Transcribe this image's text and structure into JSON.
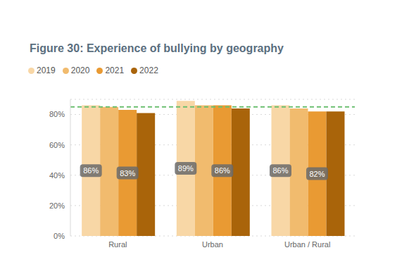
{
  "chart_data": {
    "type": "bar",
    "title": "Figure 30: Experience of bullying by geography",
    "categories": [
      "Rural",
      "Urban",
      "Urban / Rural"
    ],
    "series": [
      {
        "name": "2019",
        "color": "#f8d7a6",
        "values": [
          86,
          89,
          86
        ],
        "data_labels": true,
        "value_labels": [
          "86%",
          "89%",
          "86%"
        ]
      },
      {
        "name": "2020",
        "color": "#f1bb6e",
        "values": [
          85,
          86,
          84
        ]
      },
      {
        "name": "2021",
        "color": "#e99a33",
        "values": [
          83,
          86,
          82
        ],
        "data_labels": true,
        "value_labels": [
          "83%",
          "86%",
          "82%"
        ]
      },
      {
        "name": "2022",
        "color": "#a9640a",
        "values": [
          81,
          84,
          82
        ]
      }
    ],
    "ylim": [
      0,
      90
    ],
    "yticks": [
      {
        "value": 0,
        "label": "0%"
      },
      {
        "value": 20,
        "label": "20%"
      },
      {
        "value": 40,
        "label": "40%"
      },
      {
        "value": 60,
        "label": "60%"
      },
      {
        "value": 80,
        "label": "80%"
      }
    ],
    "grid": true,
    "legend": "top-left",
    "reference_line": {
      "value": 85,
      "color": "#6cc070",
      "line_style": "dashed"
    }
  }
}
